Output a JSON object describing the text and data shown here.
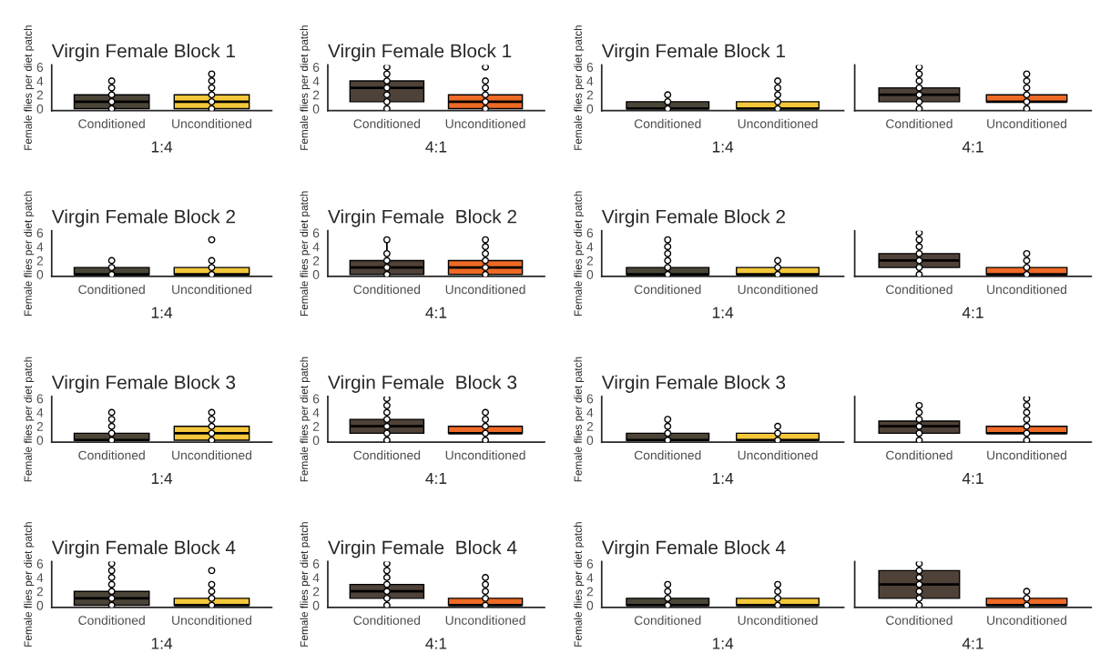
{
  "chart_data": [
    {
      "type": "box",
      "title": "Virgin Female Block 1",
      "ylabel": "Female flies per diet patch",
      "xlabel": "1:4",
      "categories": [
        "Conditioned",
        "Unconditioned"
      ],
      "ylim": [
        -0.3,
        6.3
      ],
      "yticks": [
        0,
        2,
        4,
        6
      ],
      "colors": [
        "#4b4538",
        "#f5c73a"
      ],
      "boxes": [
        {
          "low": 0,
          "q1": 0,
          "median": 1,
          "q3": 2,
          "high": 4
        },
        {
          "low": 0,
          "q1": 0,
          "median": 1,
          "q3": 2,
          "high": 5
        }
      ],
      "marker": "circle",
      "series": [
        {
          "type": "scatter",
          "color": "#000000",
          "x": [
            "Conditioned",
            "Conditioned",
            "Conditioned",
            "Conditioned",
            "Conditioned",
            "Unconditioned",
            "Unconditioned",
            "Unconditioned",
            "Unconditioned",
            "Unconditioned",
            "Unconditioned"
          ],
          "values": [
            0,
            1,
            2,
            3,
            4,
            0,
            1,
            2,
            3,
            4,
            5
          ]
        }
      ]
    },
    {
      "type": "box",
      "title": "Virgin Female Block 1",
      "ylabel": "Female flies per diet patch",
      "xlabel": "4:1",
      "categories": [
        "Conditioned",
        "Unconditioned"
      ],
      "ylim": [
        -0.3,
        6.3
      ],
      "yticks": [
        0,
        2,
        4,
        6
      ],
      "colors": [
        "#4f4238",
        "#ee6a25"
      ],
      "boxes": [
        {
          "low": 0,
          "q1": 1,
          "median": 3,
          "q3": 4,
          "high": 6
        },
        {
          "low": 0,
          "q1": 0,
          "median": 1,
          "q3": 2,
          "high": 4
        }
      ],
      "marker": "circle",
      "series": [
        {
          "type": "scatter",
          "color": "#000000",
          "x": [
            "Conditioned",
            "Conditioned",
            "Conditioned",
            "Conditioned",
            "Conditioned",
            "Conditioned",
            "Conditioned",
            "Unconditioned",
            "Unconditioned",
            "Unconditioned",
            "Unconditioned",
            "Unconditioned",
            "Unconditioned"
          ],
          "values": [
            0,
            1,
            2,
            3,
            4,
            5,
            6,
            0,
            1,
            2,
            3,
            4,
            6
          ]
        }
      ]
    },
    {
      "type": "box",
      "title": "Virgin Female Block 1",
      "ylabel": "Female flies per diet patch",
      "xlabel": "1:4",
      "categories": [
        "Conditioned",
        "Unconditioned"
      ],
      "ylim": [
        -0.3,
        6.3
      ],
      "yticks": [
        0,
        2,
        4,
        6
      ],
      "colors": [
        "#4b4538",
        "#f5c73a"
      ],
      "boxes": [
        {
          "low": 0,
          "q1": 0,
          "median": 0,
          "q3": 1,
          "high": 2
        },
        {
          "low": 0,
          "q1": 0,
          "median": 0,
          "q3": 1,
          "high": 2
        }
      ],
      "marker": "circle",
      "series": [
        {
          "type": "scatter",
          "color": "#000000",
          "x": [
            "Conditioned",
            "Conditioned",
            "Conditioned",
            "Unconditioned",
            "Unconditioned",
            "Unconditioned",
            "Unconditioned",
            "Unconditioned"
          ],
          "values": [
            0,
            1,
            2,
            0,
            1,
            2,
            3,
            4
          ]
        }
      ]
    },
    {
      "type": "box",
      "xlabel": "4:1",
      "categories": [
        "Conditioned",
        "Unconditioned"
      ],
      "ylim": [
        -0.3,
        6.3
      ],
      "yticks": [
        0,
        2,
        4,
        6
      ],
      "tick_labels": "x",
      "colors": [
        "#4f4238",
        "#ee6a25"
      ],
      "boxes": [
        {
          "low": 0,
          "q1": 1,
          "median": 2,
          "q3": 3,
          "high": 6
        },
        {
          "low": 0,
          "q1": 1,
          "median": 1,
          "q3": 2,
          "high": 3
        }
      ],
      "marker": "circle",
      "series": [
        {
          "type": "scatter",
          "color": "#000000",
          "x": [
            "Conditioned",
            "Conditioned",
            "Conditioned",
            "Conditioned",
            "Conditioned",
            "Conditioned",
            "Conditioned",
            "Unconditioned",
            "Unconditioned",
            "Unconditioned",
            "Unconditioned",
            "Unconditioned",
            "Unconditioned"
          ],
          "values": [
            0,
            1,
            2,
            3,
            4,
            5,
            6,
            0,
            1,
            2,
            3,
            4,
            5
          ]
        }
      ]
    },
    {
      "type": "box",
      "title": "Virgin Female Block 2",
      "ylabel": "Female flies per diet patch",
      "xlabel": "1:4",
      "categories": [
        "Conditioned",
        "Unconditioned"
      ],
      "ylim": [
        -0.3,
        6.3
      ],
      "yticks": [
        0,
        2,
        4,
        6
      ],
      "colors": [
        "#4b4538",
        "#f5c73a"
      ],
      "boxes": [
        {
          "low": 0,
          "q1": 0,
          "median": 0,
          "q3": 1,
          "high": 2
        },
        {
          "low": 0,
          "q1": 0,
          "median": 0,
          "q3": 1,
          "high": 2
        }
      ],
      "marker": "circle",
      "series": [
        {
          "type": "scatter",
          "color": "#000000",
          "x": [
            "Conditioned",
            "Conditioned",
            "Conditioned",
            "Unconditioned",
            "Unconditioned",
            "Unconditioned",
            "Unconditioned"
          ],
          "values": [
            0,
            1,
            2,
            0,
            1,
            2,
            5
          ]
        }
      ]
    },
    {
      "type": "box",
      "title": "Virgin Female  Block 2",
      "ylabel": "Female flies per diet patch",
      "xlabel": "4:1",
      "categories": [
        "Conditioned",
        "Unconditioned"
      ],
      "ylim": [
        -0.3,
        6.3
      ],
      "yticks": [
        0,
        2,
        4,
        6
      ],
      "colors": [
        "#4f4238",
        "#ee6a25"
      ],
      "boxes": [
        {
          "low": 0,
          "q1": 0,
          "median": 1,
          "q3": 2,
          "high": 5
        },
        {
          "low": 0,
          "q1": 0,
          "median": 1,
          "q3": 2,
          "high": 5
        }
      ],
      "marker": "circle",
      "series": [
        {
          "type": "scatter",
          "color": "#000000",
          "x": [
            "Conditioned",
            "Conditioned",
            "Conditioned",
            "Conditioned",
            "Conditioned",
            "Unconditioned",
            "Unconditioned",
            "Unconditioned",
            "Unconditioned",
            "Unconditioned",
            "Unconditioned"
          ],
          "values": [
            0,
            1,
            2,
            3,
            5,
            0,
            1,
            2,
            3,
            4,
            5
          ]
        }
      ]
    },
    {
      "type": "box",
      "title": "Virgin Female Block 2",
      "ylabel": "Female flies per diet patch",
      "xlabel": "1:4",
      "categories": [
        "Conditioned",
        "Unconditioned"
      ],
      "ylim": [
        -0.3,
        6.3
      ],
      "yticks": [
        0,
        2,
        4,
        6
      ],
      "colors": [
        "#4b4538",
        "#f5c73a"
      ],
      "boxes": [
        {
          "low": 0,
          "q1": 0,
          "median": 0,
          "q3": 1,
          "high": 3
        },
        {
          "low": 0,
          "q1": 0,
          "median": 0,
          "q3": 1,
          "high": 2
        }
      ],
      "marker": "circle",
      "series": [
        {
          "type": "scatter",
          "color": "#000000",
          "x": [
            "Conditioned",
            "Conditioned",
            "Conditioned",
            "Conditioned",
            "Conditioned",
            "Conditioned",
            "Unconditioned",
            "Unconditioned",
            "Unconditioned"
          ],
          "values": [
            0,
            1,
            2,
            3,
            4,
            5,
            0,
            1,
            2
          ]
        }
      ]
    },
    {
      "type": "box",
      "xlabel": "4:1",
      "categories": [
        "Conditioned",
        "Unconditioned"
      ],
      "ylim": [
        -0.3,
        6.3
      ],
      "yticks": [
        0,
        2,
        4,
        6
      ],
      "tick_labels": "x",
      "colors": [
        "#4f4238",
        "#ee6a25"
      ],
      "boxes": [
        {
          "low": 0,
          "q1": 1,
          "median": 2,
          "q3": 3,
          "high": 6
        },
        {
          "low": 0,
          "q1": 0,
          "median": 0,
          "q3": 1,
          "high": 2
        }
      ],
      "marker": "circle",
      "series": [
        {
          "type": "scatter",
          "color": "#000000",
          "x": [
            "Conditioned",
            "Conditioned",
            "Conditioned",
            "Conditioned",
            "Conditioned",
            "Conditioned",
            "Conditioned",
            "Unconditioned",
            "Unconditioned",
            "Unconditioned",
            "Unconditioned"
          ],
          "values": [
            0,
            1,
            2,
            3,
            4,
            5,
            6,
            0,
            1,
            2,
            3
          ]
        }
      ]
    },
    {
      "type": "box",
      "title": "Virgin Female Block 3",
      "ylabel": "Female flies per diet patch",
      "xlabel": "1:4",
      "categories": [
        "Conditioned",
        "Unconditioned"
      ],
      "ylim": [
        -0.3,
        6.3
      ],
      "yticks": [
        0,
        2,
        4,
        6
      ],
      "colors": [
        "#4b4538",
        "#f5c73a"
      ],
      "boxes": [
        {
          "low": 0,
          "q1": 0,
          "median": 0,
          "q3": 1,
          "high": 2
        },
        {
          "low": 0,
          "q1": 0,
          "median": 1,
          "q3": 2,
          "high": 4
        }
      ],
      "marker": "circle",
      "series": [
        {
          "type": "scatter",
          "color": "#000000",
          "x": [
            "Conditioned",
            "Conditioned",
            "Conditioned",
            "Conditioned",
            "Conditioned",
            "Unconditioned",
            "Unconditioned",
            "Unconditioned",
            "Unconditioned",
            "Unconditioned"
          ],
          "values": [
            0,
            1,
            2,
            3,
            4,
            0,
            1,
            2,
            3,
            4
          ]
        }
      ]
    },
    {
      "type": "box",
      "title": "Virgin Female  Block 3",
      "ylabel": "Female flies per diet patch",
      "xlabel": "4:1",
      "categories": [
        "Conditioned",
        "Unconditioned"
      ],
      "ylim": [
        -0.3,
        6.3
      ],
      "yticks": [
        0,
        2,
        4,
        6
      ],
      "colors": [
        "#4f4238",
        "#ee6a25"
      ],
      "boxes": [
        {
          "low": 0,
          "q1": 1,
          "median": 2,
          "q3": 3,
          "high": 6
        },
        {
          "low": 0,
          "q1": 1,
          "median": 1,
          "q3": 2,
          "high": 3
        }
      ],
      "marker": "circle",
      "series": [
        {
          "type": "scatter",
          "color": "#000000",
          "x": [
            "Conditioned",
            "Conditioned",
            "Conditioned",
            "Conditioned",
            "Conditioned",
            "Conditioned",
            "Conditioned",
            "Unconditioned",
            "Unconditioned",
            "Unconditioned",
            "Unconditioned",
            "Unconditioned"
          ],
          "values": [
            0,
            1,
            2,
            3,
            4,
            5,
            6,
            0,
            1,
            2,
            3,
            4
          ]
        }
      ]
    },
    {
      "type": "box",
      "title": "Virgin Female Block 3",
      "ylabel": "Female flies per diet patch",
      "xlabel": "1:4",
      "categories": [
        "Conditioned",
        "Unconditioned"
      ],
      "ylim": [
        -0.3,
        6.3
      ],
      "yticks": [
        0,
        2,
        4,
        6
      ],
      "colors": [
        "#4b4538",
        "#f5c73a"
      ],
      "boxes": [
        {
          "low": 0,
          "q1": 0,
          "median": 0,
          "q3": 1,
          "high": 2
        },
        {
          "low": 0,
          "q1": 0,
          "median": 0,
          "q3": 1,
          "high": 2
        }
      ],
      "marker": "circle",
      "series": [
        {
          "type": "scatter",
          "color": "#000000",
          "x": [
            "Conditioned",
            "Conditioned",
            "Conditioned",
            "Conditioned",
            "Unconditioned",
            "Unconditioned",
            "Unconditioned"
          ],
          "values": [
            0,
            1,
            2,
            3,
            0,
            1,
            2
          ]
        }
      ]
    },
    {
      "type": "box",
      "xlabel": "4:1",
      "categories": [
        "Conditioned",
        "Unconditioned"
      ],
      "ylim": [
        -0.3,
        6.3
      ],
      "yticks": [
        0,
        2,
        4,
        6
      ],
      "tick_labels": "x",
      "colors": [
        "#4f4238",
        "#ee6a25"
      ],
      "boxes": [
        {
          "low": 0,
          "q1": 1,
          "median": 2,
          "q3": 2.75,
          "high": 5
        },
        {
          "low": 0,
          "q1": 1,
          "median": 1,
          "q3": 2,
          "high": 3
        }
      ],
      "marker": "circle",
      "series": [
        {
          "type": "scatter",
          "color": "#000000",
          "x": [
            "Conditioned",
            "Conditioned",
            "Conditioned",
            "Conditioned",
            "Conditioned",
            "Conditioned",
            "Unconditioned",
            "Unconditioned",
            "Unconditioned",
            "Unconditioned",
            "Unconditioned",
            "Unconditioned",
            "Unconditioned"
          ],
          "values": [
            0,
            1,
            2,
            3,
            4,
            5,
            0,
            1,
            2,
            3,
            4,
            5,
            6
          ]
        }
      ]
    },
    {
      "type": "box",
      "title": "Virgin Female Block 4",
      "ylabel": "Female flies per diet patch",
      "xlabel": "1:4",
      "categories": [
        "Conditioned",
        "Unconditioned"
      ],
      "ylim": [
        -0.3,
        6.3
      ],
      "yticks": [
        0,
        2,
        4,
        6
      ],
      "colors": [
        "#4b4538",
        "#f5c73a"
      ],
      "boxes": [
        {
          "low": 0,
          "q1": 0,
          "median": 1,
          "q3": 2,
          "high": 5
        },
        {
          "low": 0,
          "q1": 0,
          "median": 0,
          "q3": 1,
          "high": 2
        }
      ],
      "marker": "circle",
      "series": [
        {
          "type": "scatter",
          "color": "#000000",
          "x": [
            "Conditioned",
            "Conditioned",
            "Conditioned",
            "Conditioned",
            "Conditioned",
            "Conditioned",
            "Conditioned",
            "Unconditioned",
            "Unconditioned",
            "Unconditioned",
            "Unconditioned",
            "Unconditioned"
          ],
          "values": [
            0,
            1,
            2,
            3,
            4,
            5,
            6,
            0,
            1,
            2,
            3,
            5
          ]
        }
      ]
    },
    {
      "type": "box",
      "title": "Virgin Female  Block 4",
      "ylabel": "Female flies per diet patch",
      "xlabel": "4:1",
      "categories": [
        "Conditioned",
        "Unconditioned"
      ],
      "ylim": [
        -0.3,
        6.3
      ],
      "yticks": [
        0,
        2,
        4,
        6
      ],
      "colors": [
        "#4f4238",
        "#ee6a25"
      ],
      "boxes": [
        {
          "low": 0,
          "q1": 1,
          "median": 2,
          "q3": 3,
          "high": 6
        },
        {
          "low": 0,
          "q1": 0,
          "median": 0,
          "q3": 1,
          "high": 2
        }
      ],
      "marker": "circle",
      "series": [
        {
          "type": "scatter",
          "color": "#000000",
          "x": [
            "Conditioned",
            "Conditioned",
            "Conditioned",
            "Conditioned",
            "Conditioned",
            "Conditioned",
            "Conditioned",
            "Unconditioned",
            "Unconditioned",
            "Unconditioned",
            "Unconditioned",
            "Unconditioned"
          ],
          "values": [
            0,
            1,
            2,
            3,
            4,
            5,
            6,
            0,
            1,
            2,
            3,
            4
          ]
        }
      ]
    },
    {
      "type": "box",
      "title": "Virgin Female Block 4",
      "ylabel": "Female flies per diet patch",
      "xlabel": "1:4",
      "categories": [
        "Conditioned",
        "Unconditioned"
      ],
      "ylim": [
        -0.3,
        6.3
      ],
      "yticks": [
        0,
        2,
        4,
        6
      ],
      "colors": [
        "#4b4538",
        "#f5c73a"
      ],
      "boxes": [
        {
          "low": 0,
          "q1": 0,
          "median": 0,
          "q3": 1,
          "high": 2
        },
        {
          "low": 0,
          "q1": 0,
          "median": 0,
          "q3": 1,
          "high": 2
        }
      ],
      "marker": "circle",
      "series": [
        {
          "type": "scatter",
          "color": "#000000",
          "x": [
            "Conditioned",
            "Conditioned",
            "Conditioned",
            "Conditioned",
            "Unconditioned",
            "Unconditioned",
            "Unconditioned",
            "Unconditioned"
          ],
          "values": [
            0,
            1,
            2,
            3,
            0,
            1,
            2,
            3
          ]
        }
      ]
    },
    {
      "type": "box",
      "xlabel": "4:1",
      "categories": [
        "Conditioned",
        "Unconditioned"
      ],
      "ylim": [
        -0.3,
        6.3
      ],
      "yticks": [
        0,
        2,
        4,
        6
      ],
      "tick_labels": "x",
      "colors": [
        "#4f4238",
        "#ee6a25"
      ],
      "boxes": [
        {
          "low": 0,
          "q1": 1,
          "median": 3,
          "q3": 5,
          "high": 6
        },
        {
          "low": 0,
          "q1": 0,
          "median": 0,
          "q3": 1,
          "high": 2
        }
      ],
      "marker": "circle",
      "series": [
        {
          "type": "scatter",
          "color": "#000000",
          "x": [
            "Conditioned",
            "Conditioned",
            "Conditioned",
            "Conditioned",
            "Conditioned",
            "Conditioned",
            "Conditioned",
            "Unconditioned",
            "Unconditioned",
            "Unconditioned"
          ],
          "values": [
            0,
            1,
            2,
            3,
            4,
            5,
            6,
            0,
            1,
            2
          ]
        }
      ]
    }
  ]
}
